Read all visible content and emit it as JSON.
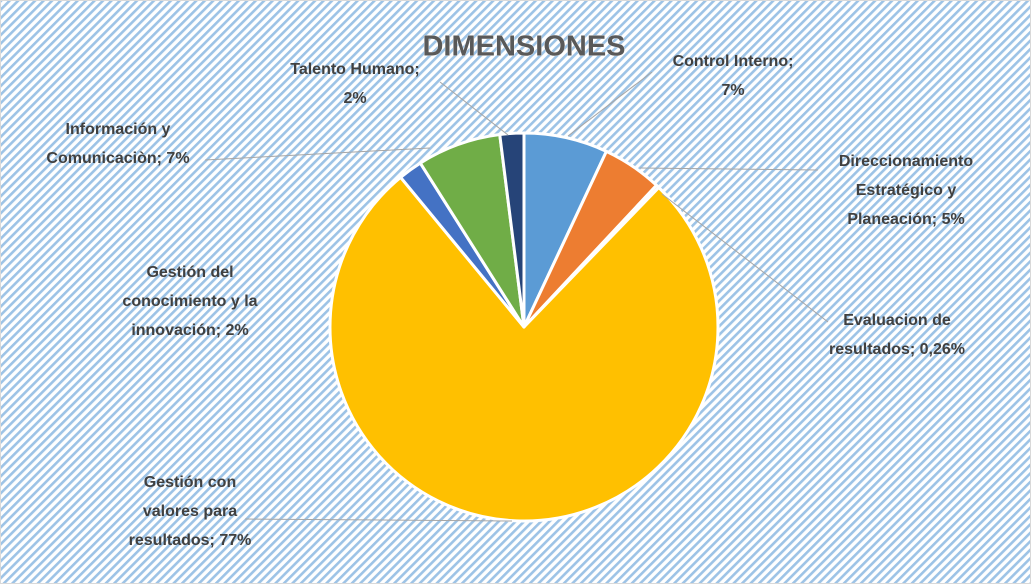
{
  "chart_data": {
    "type": "pie",
    "title": "DIMENSIONES",
    "values": [
      7,
      5,
      0.26,
      77,
      2,
      7,
      2
    ],
    "labels": [
      [
        "Control Interno;",
        "7%"
      ],
      [
        "Direccionamiento",
        "Estratégico y",
        "Planeación; 5%"
      ],
      [
        "Evaluacion de",
        "resultados; 0,26%"
      ],
      [
        "Gestión con",
        "valores para",
        "resultados; 77%"
      ],
      [
        "Gestión del",
        "conocimiento y la",
        "innovación; 2%"
      ],
      [
        "Información y",
        "Comunicaciòn; 7%"
      ],
      [
        "Talento Humano;",
        "2%"
      ]
    ],
    "colors": [
      "#5b9bd5",
      "#ed7d31",
      "#a5a5a5",
      "#ffc000",
      "#4472c4",
      "#70ad47",
      "#264478"
    ]
  }
}
